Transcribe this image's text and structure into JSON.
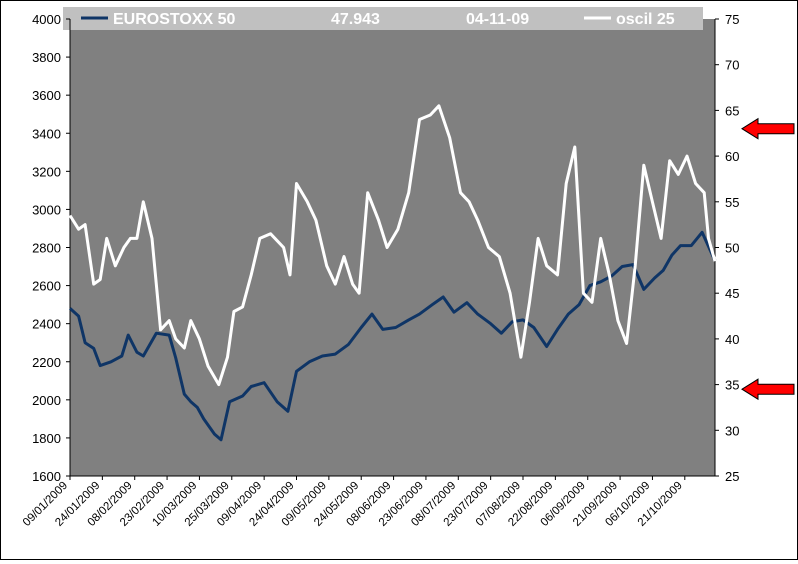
{
  "header": {
    "series_name": "EUROSTOXX 50",
    "last_value": "47.943",
    "date": "04-11-09",
    "oscillator_name": "oscil 25"
  },
  "chart_data": {
    "type": "line",
    "background_color": "#808080",
    "header_color": "#c0c0c0",
    "grid": false,
    "legend": "top",
    "x": {
      "type": "date",
      "range": [
        "2009-01-09",
        "2009-11-04"
      ],
      "tick_labels": [
        "09/01/2009",
        "24/01/2009",
        "08/02/2009",
        "23/02/2009",
        "10/03/2009",
        "25/03/2009",
        "09/04/2009",
        "24/04/2009",
        "09/05/2009",
        "24/05/2009",
        "08/06/2009",
        "23/06/2009",
        "08/07/2009",
        "23/07/2009",
        "07/08/2009",
        "22/08/2009",
        "06/09/2009",
        "21/09/2009",
        "06/10/2009",
        "21/10/2009"
      ]
    },
    "y_left": {
      "range": [
        1600,
        4000
      ],
      "ticks": [
        1600,
        1800,
        2000,
        2200,
        2400,
        2600,
        2800,
        3000,
        3200,
        3400,
        3600,
        3800,
        4000
      ]
    },
    "y_right": {
      "range": [
        25,
        75
      ],
      "ticks": [
        25,
        30,
        35,
        40,
        45,
        50,
        55,
        60,
        65,
        70,
        75
      ]
    },
    "arrows": [
      {
        "axis": "right",
        "value": 63,
        "direction": "left",
        "color": "#ff0000"
      },
      {
        "axis": "right",
        "value": 34.5,
        "direction": "left",
        "color": "#ff0000"
      }
    ],
    "series": [
      {
        "name": "EUROSTOXX 50",
        "axis": "left",
        "color": "#0f3566",
        "points": [
          [
            "2009-01-09",
            2480
          ],
          [
            "2009-01-13",
            2440
          ],
          [
            "2009-01-16",
            2300
          ],
          [
            "2009-01-20",
            2270
          ],
          [
            "2009-01-23",
            2180
          ],
          [
            "2009-01-28",
            2200
          ],
          [
            "2009-02-02",
            2230
          ],
          [
            "2009-02-05",
            2340
          ],
          [
            "2009-02-09",
            2250
          ],
          [
            "2009-02-12",
            2230
          ],
          [
            "2009-02-18",
            2350
          ],
          [
            "2009-02-24",
            2340
          ],
          [
            "2009-02-27",
            2220
          ],
          [
            "2009-03-03",
            2030
          ],
          [
            "2009-03-06",
            1990
          ],
          [
            "2009-03-09",
            1960
          ],
          [
            "2009-03-12",
            1900
          ],
          [
            "2009-03-17",
            1820
          ],
          [
            "2009-03-20",
            1790
          ],
          [
            "2009-03-24",
            1990
          ],
          [
            "2009-03-30",
            2020
          ],
          [
            "2009-04-03",
            2070
          ],
          [
            "2009-04-09",
            2090
          ],
          [
            "2009-04-15",
            1990
          ],
          [
            "2009-04-20",
            1940
          ],
          [
            "2009-04-24",
            2150
          ],
          [
            "2009-04-30",
            2200
          ],
          [
            "2009-05-06",
            2230
          ],
          [
            "2009-05-12",
            2240
          ],
          [
            "2009-05-18",
            2290
          ],
          [
            "2009-05-24",
            2380
          ],
          [
            "2009-05-29",
            2450
          ],
          [
            "2009-06-03",
            2370
          ],
          [
            "2009-06-09",
            2380
          ],
          [
            "2009-06-15",
            2420
          ],
          [
            "2009-06-20",
            2450
          ],
          [
            "2009-06-26",
            2500
          ],
          [
            "2009-07-01",
            2540
          ],
          [
            "2009-07-06",
            2460
          ],
          [
            "2009-07-12",
            2510
          ],
          [
            "2009-07-17",
            2450
          ],
          [
            "2009-07-23",
            2400
          ],
          [
            "2009-07-28",
            2350
          ],
          [
            "2009-08-02",
            2410
          ],
          [
            "2009-08-07",
            2420
          ],
          [
            "2009-08-12",
            2380
          ],
          [
            "2009-08-18",
            2280
          ],
          [
            "2009-08-23",
            2370
          ],
          [
            "2009-08-28",
            2450
          ],
          [
            "2009-09-02",
            2500
          ],
          [
            "2009-09-07",
            2600
          ],
          [
            "2009-09-12",
            2620
          ],
          [
            "2009-09-17",
            2650
          ],
          [
            "2009-09-22",
            2700
          ],
          [
            "2009-09-27",
            2710
          ],
          [
            "2009-10-02",
            2580
          ],
          [
            "2009-10-07",
            2640
          ],
          [
            "2009-10-11",
            2680
          ],
          [
            "2009-10-15",
            2760
          ],
          [
            "2009-10-19",
            2810
          ],
          [
            "2009-10-24",
            2810
          ],
          [
            "2009-10-29",
            2880
          ],
          [
            "2009-11-04",
            2730
          ]
        ]
      },
      {
        "name": "oscil 25",
        "axis": "right",
        "color": "#ffffff",
        "points": [
          [
            "2009-01-09",
            53.5
          ],
          [
            "2009-01-13",
            52
          ],
          [
            "2009-01-16",
            52.5
          ],
          [
            "2009-01-20",
            46
          ],
          [
            "2009-01-23",
            46.5
          ],
          [
            "2009-01-26",
            51
          ],
          [
            "2009-01-30",
            48
          ],
          [
            "2009-02-03",
            50
          ],
          [
            "2009-02-06",
            51
          ],
          [
            "2009-02-09",
            51
          ],
          [
            "2009-02-12",
            55
          ],
          [
            "2009-02-16",
            51
          ],
          [
            "2009-02-20",
            41
          ],
          [
            "2009-02-24",
            42
          ],
          [
            "2009-02-27",
            40
          ],
          [
            "2009-03-03",
            39
          ],
          [
            "2009-03-06",
            42
          ],
          [
            "2009-03-10",
            40
          ],
          [
            "2009-03-14",
            37
          ],
          [
            "2009-03-19",
            35
          ],
          [
            "2009-03-23",
            38
          ],
          [
            "2009-03-26",
            43
          ],
          [
            "2009-03-30",
            43.5
          ],
          [
            "2009-04-03",
            47
          ],
          [
            "2009-04-07",
            51
          ],
          [
            "2009-04-12",
            51.5
          ],
          [
            "2009-04-18",
            50
          ],
          [
            "2009-04-21",
            47
          ],
          [
            "2009-04-24",
            57
          ],
          [
            "2009-04-29",
            55
          ],
          [
            "2009-05-03",
            53
          ],
          [
            "2009-05-08",
            48
          ],
          [
            "2009-05-12",
            46
          ],
          [
            "2009-05-16",
            49
          ],
          [
            "2009-05-20",
            46
          ],
          [
            "2009-05-23",
            45
          ],
          [
            "2009-05-27",
            56
          ],
          [
            "2009-06-01",
            53
          ],
          [
            "2009-06-05",
            50
          ],
          [
            "2009-06-10",
            52
          ],
          [
            "2009-06-15",
            56
          ],
          [
            "2009-06-20",
            64
          ],
          [
            "2009-06-25",
            64.5
          ],
          [
            "2009-06-29",
            65.5
          ],
          [
            "2009-07-04",
            62
          ],
          [
            "2009-07-09",
            56
          ],
          [
            "2009-07-13",
            55
          ],
          [
            "2009-07-17",
            53
          ],
          [
            "2009-07-22",
            50
          ],
          [
            "2009-07-27",
            49
          ],
          [
            "2009-08-01",
            45
          ],
          [
            "2009-08-06",
            38
          ],
          [
            "2009-08-10",
            44
          ],
          [
            "2009-08-14",
            51
          ],
          [
            "2009-08-18",
            48
          ],
          [
            "2009-08-23",
            47
          ],
          [
            "2009-08-27",
            57
          ],
          [
            "2009-08-31",
            61
          ],
          [
            "2009-09-04",
            45
          ],
          [
            "2009-09-08",
            44
          ],
          [
            "2009-09-12",
            51
          ],
          [
            "2009-09-16",
            47
          ],
          [
            "2009-09-20",
            42
          ],
          [
            "2009-09-24",
            39.5
          ],
          [
            "2009-09-28",
            48
          ],
          [
            "2009-10-02",
            59
          ],
          [
            "2009-10-06",
            55
          ],
          [
            "2009-10-10",
            51
          ],
          [
            "2009-10-14",
            59.5
          ],
          [
            "2009-10-18",
            58
          ],
          [
            "2009-10-22",
            60
          ],
          [
            "2009-10-26",
            57
          ],
          [
            "2009-10-30",
            56
          ],
          [
            "2009-11-01",
            51
          ],
          [
            "2009-11-04",
            48.5
          ]
        ]
      }
    ]
  }
}
